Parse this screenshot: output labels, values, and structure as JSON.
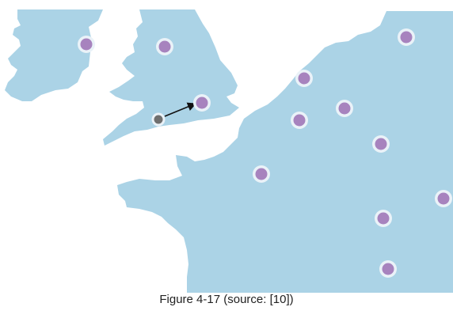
{
  "caption": "Figure 4-17 (source: [10])",
  "colors": {
    "land": "#abd3e6",
    "marker_fill": "#a783be",
    "marker_ring": "#eaf2f8",
    "source_marker": "#6f6f6f",
    "arrow": "#111111"
  },
  "markers": {
    "count": 12,
    "style": "purple-dot-with-white-ring"
  },
  "source_marker": {
    "style": "grey-dot-with-white-ring",
    "arrow_points_to": "london-marker"
  }
}
